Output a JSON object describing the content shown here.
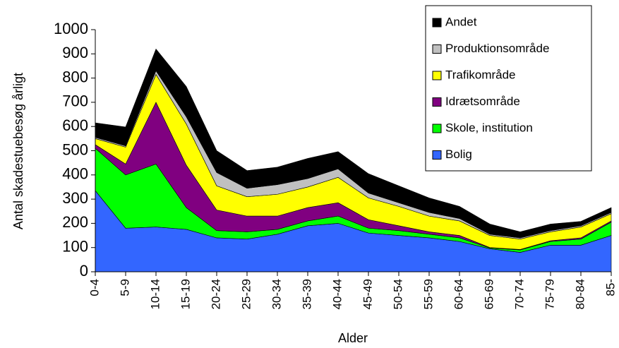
{
  "chart_data": {
    "type": "stacked-area",
    "x_label": "Alder",
    "y_label": "Antal skadestuebesøg årligt",
    "categories": [
      "0-4",
      "5-9",
      "10-14",
      "15-19",
      "20-24",
      "25-29",
      "30-34",
      "35-39",
      "40-44",
      "45-49",
      "50-54",
      "55-59",
      "60-64",
      "65-69",
      "70-74",
      "75-79",
      "80-84",
      "85-"
    ],
    "ylim": [
      0,
      1000
    ],
    "yticks": [
      0,
      100,
      200,
      300,
      400,
      500,
      600,
      700,
      800,
      900,
      1000
    ],
    "legend": "upper right",
    "series": [
      {
        "name": "Bolig",
        "color": "#3366ff",
        "values": [
          335,
          180,
          185,
          175,
          140,
          135,
          155,
          190,
          200,
          160,
          150,
          140,
          125,
          95,
          80,
          110,
          110,
          150
        ]
      },
      {
        "name": "Skole, institution",
        "color": "#00ff00",
        "values": [
          175,
          220,
          260,
          90,
          30,
          30,
          20,
          20,
          30,
          20,
          20,
          15,
          15,
          3,
          10,
          15,
          25,
          55
        ]
      },
      {
        "name": "Idrætsområde",
        "color": "#800080",
        "values": [
          15,
          45,
          255,
          175,
          85,
          65,
          55,
          55,
          55,
          35,
          20,
          10,
          10,
          2,
          2,
          3,
          5,
          5
        ]
      },
      {
        "name": "Trafikområde",
        "color": "#ffff00",
        "values": [
          25,
          70,
          115,
          170,
          100,
          80,
          90,
          85,
          105,
          90,
          80,
          65,
          60,
          50,
          43,
          37,
          45,
          30
        ]
      },
      {
        "name": "Produktionsområde",
        "color": "#c0c0c0",
        "values": [
          5,
          5,
          15,
          30,
          55,
          35,
          40,
          35,
          35,
          20,
          15,
          15,
          10,
          5,
          5,
          5,
          5,
          5
        ]
      },
      {
        "name": "Andet",
        "color": "#000000",
        "values": [
          60,
          78,
          90,
          125,
          90,
          73,
          72,
          83,
          71,
          80,
          70,
          60,
          50,
          42,
          25,
          27,
          18,
          20
        ]
      }
    ]
  }
}
